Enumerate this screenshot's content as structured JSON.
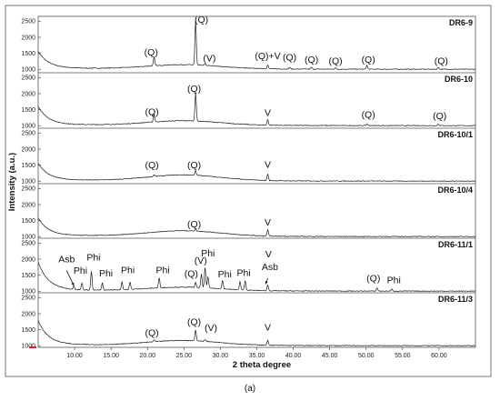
{
  "chart_data": {
    "type": "line",
    "xlabel": "2 theta degree",
    "ylabel": "Intensity (a.u.)",
    "caption": "(a)",
    "xlim": [
      5,
      65
    ],
    "x_ticks": [
      "10.00",
      "15.00",
      "20.00",
      "25.00",
      "30.00",
      "35.00",
      "40.00",
      "45.00",
      "50.00",
      "55.00",
      "60.00"
    ],
    "y_ticks": [
      "1000",
      "1500",
      "2000",
      "2500"
    ],
    "grid": false,
    "series": [
      {
        "name": "DR6-9",
        "background": {
          "start": 1420,
          "bump": 130
        },
        "peaks": [
          {
            "x": 20.9,
            "y": 1280
          },
          {
            "x": 26.6,
            "y": 2400
          },
          {
            "x": 27.9,
            "y": 1050
          },
          {
            "x": 36.5,
            "y": 1130
          },
          {
            "x": 39.5,
            "y": 1060
          },
          {
            "x": 42.5,
            "y": 1060
          },
          {
            "x": 45.8,
            "y": 1040
          },
          {
            "x": 50.1,
            "y": 1120
          },
          {
            "x": 59.9,
            "y": 1060
          }
        ],
        "annotations": [
          {
            "text": "(Q)",
            "x": 20.5,
            "y": 1430
          },
          {
            "text": "(Q)",
            "x": 27.4,
            "y": 2450
          },
          {
            "text": "(V)",
            "x": 28.5,
            "y": 1250
          },
          {
            "text": "(Q)+V",
            "x": 36.5,
            "y": 1320
          },
          {
            "text": "(Q)",
            "x": 39.5,
            "y": 1270
          },
          {
            "text": "(Q)",
            "x": 42.5,
            "y": 1210
          },
          {
            "text": "(Q)",
            "x": 45.8,
            "y": 1160
          },
          {
            "text": "(Q)",
            "x": 50.3,
            "y": 1210
          },
          {
            "text": "(Q)",
            "x": 60.3,
            "y": 1160
          }
        ]
      },
      {
        "name": "DR6-10",
        "background": {
          "start": 1450,
          "bump": 140
        },
        "peaks": [
          {
            "x": 20.9,
            "y": 1250
          },
          {
            "x": 26.6,
            "y": 1900
          },
          {
            "x": 36.5,
            "y": 1180
          },
          {
            "x": 50.1,
            "y": 1050
          },
          {
            "x": 59.9,
            "y": 1050
          }
        ],
        "annotations": [
          {
            "text": "(Q)",
            "x": 20.6,
            "y": 1330
          },
          {
            "text": "(Q)",
            "x": 26.4,
            "y": 2050
          },
          {
            "text": "V",
            "x": 36.5,
            "y": 1310
          },
          {
            "text": "(Q)",
            "x": 50.3,
            "y": 1250
          },
          {
            "text": "(Q)",
            "x": 60.1,
            "y": 1210
          }
        ]
      },
      {
        "name": "DR6-10/1",
        "background": {
          "start": 1420,
          "bump": 180
        },
        "peaks": [
          {
            "x": 20.9,
            "y": 1060
          },
          {
            "x": 26.6,
            "y": 1140
          },
          {
            "x": 36.5,
            "y": 1210
          }
        ],
        "annotations": [
          {
            "text": "(Q)",
            "x": 20.6,
            "y": 1400
          },
          {
            "text": "(Q)",
            "x": 26.4,
            "y": 1400
          },
          {
            "text": "V",
            "x": 36.5,
            "y": 1420
          }
        ]
      },
      {
        "name": "DR6-10/4",
        "background": {
          "start": 1440,
          "bump": 170
        },
        "peaks": [
          {
            "x": 26.6,
            "y": 1060
          },
          {
            "x": 36.5,
            "y": 1200
          }
        ],
        "annotations": [
          {
            "text": "(Q)",
            "x": 26.4,
            "y": 1290
          },
          {
            "text": "V",
            "x": 36.5,
            "y": 1350
          }
        ]
      },
      {
        "name": "DR6-11/1",
        "background": {
          "start": 1700,
          "bump": 110
        },
        "peaks": [
          {
            "x": 9.9,
            "y": 1120
          },
          {
            "x": 11.0,
            "y": 1220
          },
          {
            "x": 12.3,
            "y": 1600
          },
          {
            "x": 13.8,
            "y": 1220
          },
          {
            "x": 16.5,
            "y": 1250
          },
          {
            "x": 17.6,
            "y": 1230
          },
          {
            "x": 21.6,
            "y": 1320
          },
          {
            "x": 26.6,
            "y": 1150
          },
          {
            "x": 27.4,
            "y": 1420
          },
          {
            "x": 27.9,
            "y": 1650
          },
          {
            "x": 28.3,
            "y": 1350
          },
          {
            "x": 30.3,
            "y": 1260
          },
          {
            "x": 32.7,
            "y": 1260
          },
          {
            "x": 33.4,
            "y": 1300
          },
          {
            "x": 36.5,
            "y": 1180
          },
          {
            "x": 51.5,
            "y": 1100
          },
          {
            "x": 53.5,
            "y": 1060
          }
        ],
        "annotations": [
          {
            "text": "Asb",
            "x": 8.9,
            "y": 1900
          },
          {
            "text": "Phi",
            "x": 10.8,
            "y": 1550
          },
          {
            "text": "Phi",
            "x": 12.6,
            "y": 1960
          },
          {
            "text": "Phi",
            "x": 14.3,
            "y": 1460
          },
          {
            "text": "Phi",
            "x": 17.3,
            "y": 1560
          },
          {
            "text": "Phi",
            "x": 22.1,
            "y": 1560
          },
          {
            "text": "(Q)",
            "x": 26.0,
            "y": 1450
          },
          {
            "text": "(V)",
            "x": 27.3,
            "y": 1860
          },
          {
            "text": "Phi",
            "x": 28.3,
            "y": 2090
          },
          {
            "text": "Phi",
            "x": 30.6,
            "y": 1430
          },
          {
            "text": "Phi",
            "x": 33.2,
            "y": 1470
          },
          {
            "text": "V",
            "x": 36.6,
            "y": 2060
          },
          {
            "text": "Asb",
            "x": 36.8,
            "y": 1660
          },
          {
            "text": "(Q)",
            "x": 51.0,
            "y": 1300
          },
          {
            "text": "Phi",
            "x": 53.8,
            "y": 1250
          }
        ],
        "arrows": [
          {
            "from": {
              "x": 8.9,
              "y": 1640
            },
            "to": {
              "x": 9.9,
              "y": 1170
            }
          },
          {
            "from": {
              "x": 36.5,
              "y": 1400
            },
            "to": {
              "x": 36.2,
              "y": 1220
            }
          }
        ]
      },
      {
        "name": "DR6-11/3",
        "background": {
          "start": 1600,
          "bump": 150
        },
        "peaks": [
          {
            "x": 20.9,
            "y": 1060
          },
          {
            "x": 26.6,
            "y": 1330
          },
          {
            "x": 27.9,
            "y": 1050
          },
          {
            "x": 36.5,
            "y": 1150
          }
        ],
        "annotations": [
          {
            "text": "(Q)",
            "x": 20.6,
            "y": 1300
          },
          {
            "text": "(Q)",
            "x": 26.4,
            "y": 1640
          },
          {
            "text": "(V)",
            "x": 28.7,
            "y": 1460
          },
          {
            "text": "V",
            "x": 36.5,
            "y": 1470
          }
        ]
      }
    ]
  }
}
